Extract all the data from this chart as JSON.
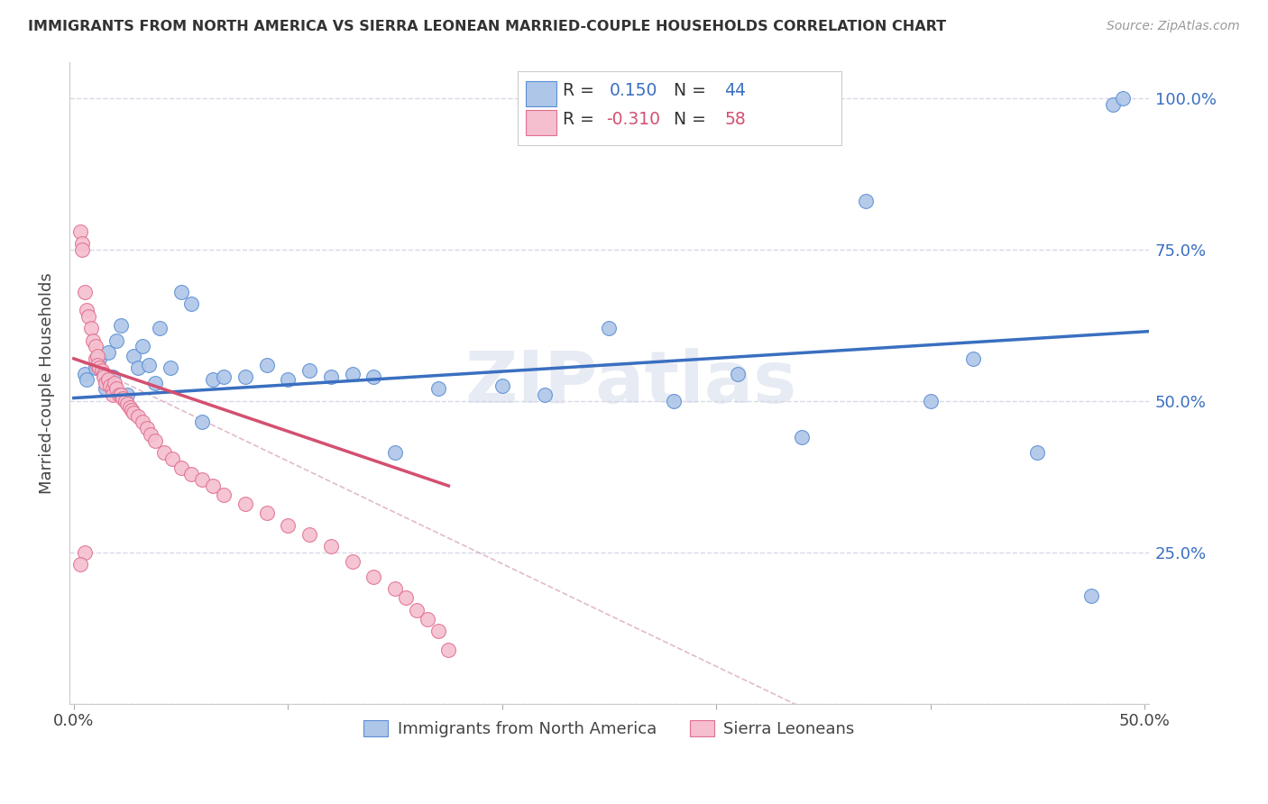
{
  "title": "IMMIGRANTS FROM NORTH AMERICA VS SIERRA LEONEAN MARRIED-COUPLE HOUSEHOLDS CORRELATION CHART",
  "source": "Source: ZipAtlas.com",
  "ylabel": "Married-couple Households",
  "blue_R": 0.15,
  "blue_N": 44,
  "pink_R": -0.31,
  "pink_N": 58,
  "blue_color": "#aec6e8",
  "pink_color": "#f5bfcf",
  "blue_edge_color": "#5b8fd4",
  "pink_edge_color": "#e07090",
  "blue_line_color": "#3a6fc0",
  "pink_line_color": "#d45070",
  "pink_dash_color": "#d4a0b0",
  "watermark": "ZIPatlas",
  "blue_scatter_x": [
    0.005,
    0.006,
    0.01,
    0.012,
    0.015,
    0.016,
    0.018,
    0.02,
    0.022,
    0.025,
    0.028,
    0.03,
    0.032,
    0.035,
    0.038,
    0.04,
    0.045,
    0.05,
    0.055,
    0.06,
    0.065,
    0.07,
    0.08,
    0.09,
    0.1,
    0.11,
    0.12,
    0.13,
    0.14,
    0.15,
    0.17,
    0.2,
    0.22,
    0.25,
    0.28,
    0.31,
    0.34,
    0.37,
    0.4,
    0.42,
    0.45,
    0.475,
    0.485,
    0.49
  ],
  "blue_scatter_y": [
    0.545,
    0.535,
    0.555,
    0.57,
    0.52,
    0.58,
    0.54,
    0.6,
    0.625,
    0.51,
    0.575,
    0.555,
    0.59,
    0.56,
    0.53,
    0.62,
    0.555,
    0.68,
    0.66,
    0.465,
    0.535,
    0.54,
    0.54,
    0.56,
    0.535,
    0.55,
    0.54,
    0.545,
    0.54,
    0.415,
    0.52,
    0.525,
    0.51,
    0.62,
    0.5,
    0.545,
    0.44,
    0.83,
    0.5,
    0.57,
    0.415,
    0.178,
    0.99,
    1.0
  ],
  "pink_scatter_x": [
    0.003,
    0.004,
    0.004,
    0.005,
    0.006,
    0.007,
    0.008,
    0.009,
    0.01,
    0.01,
    0.011,
    0.011,
    0.012,
    0.013,
    0.014,
    0.014,
    0.015,
    0.016,
    0.017,
    0.018,
    0.018,
    0.019,
    0.02,
    0.021,
    0.022,
    0.023,
    0.024,
    0.025,
    0.026,
    0.027,
    0.028,
    0.03,
    0.032,
    0.034,
    0.036,
    0.038,
    0.042,
    0.046,
    0.05,
    0.055,
    0.06,
    0.065,
    0.07,
    0.08,
    0.09,
    0.1,
    0.11,
    0.12,
    0.13,
    0.14,
    0.15,
    0.155,
    0.16,
    0.165,
    0.17,
    0.175,
    0.005,
    0.003
  ],
  "pink_scatter_y": [
    0.78,
    0.76,
    0.75,
    0.68,
    0.65,
    0.64,
    0.62,
    0.6,
    0.59,
    0.57,
    0.575,
    0.56,
    0.555,
    0.55,
    0.545,
    0.54,
    0.53,
    0.535,
    0.525,
    0.52,
    0.51,
    0.53,
    0.52,
    0.51,
    0.51,
    0.505,
    0.5,
    0.495,
    0.49,
    0.485,
    0.48,
    0.475,
    0.465,
    0.455,
    0.445,
    0.435,
    0.415,
    0.405,
    0.39,
    0.38,
    0.37,
    0.36,
    0.345,
    0.33,
    0.315,
    0.295,
    0.28,
    0.26,
    0.235,
    0.21,
    0.19,
    0.175,
    0.155,
    0.14,
    0.12,
    0.09,
    0.25,
    0.23
  ],
  "legend_label_blue": "Immigrants from North America",
  "legend_label_pink": "Sierra Leoneans",
  "background_color": "#ffffff",
  "grid_color": "#d8d8e8"
}
